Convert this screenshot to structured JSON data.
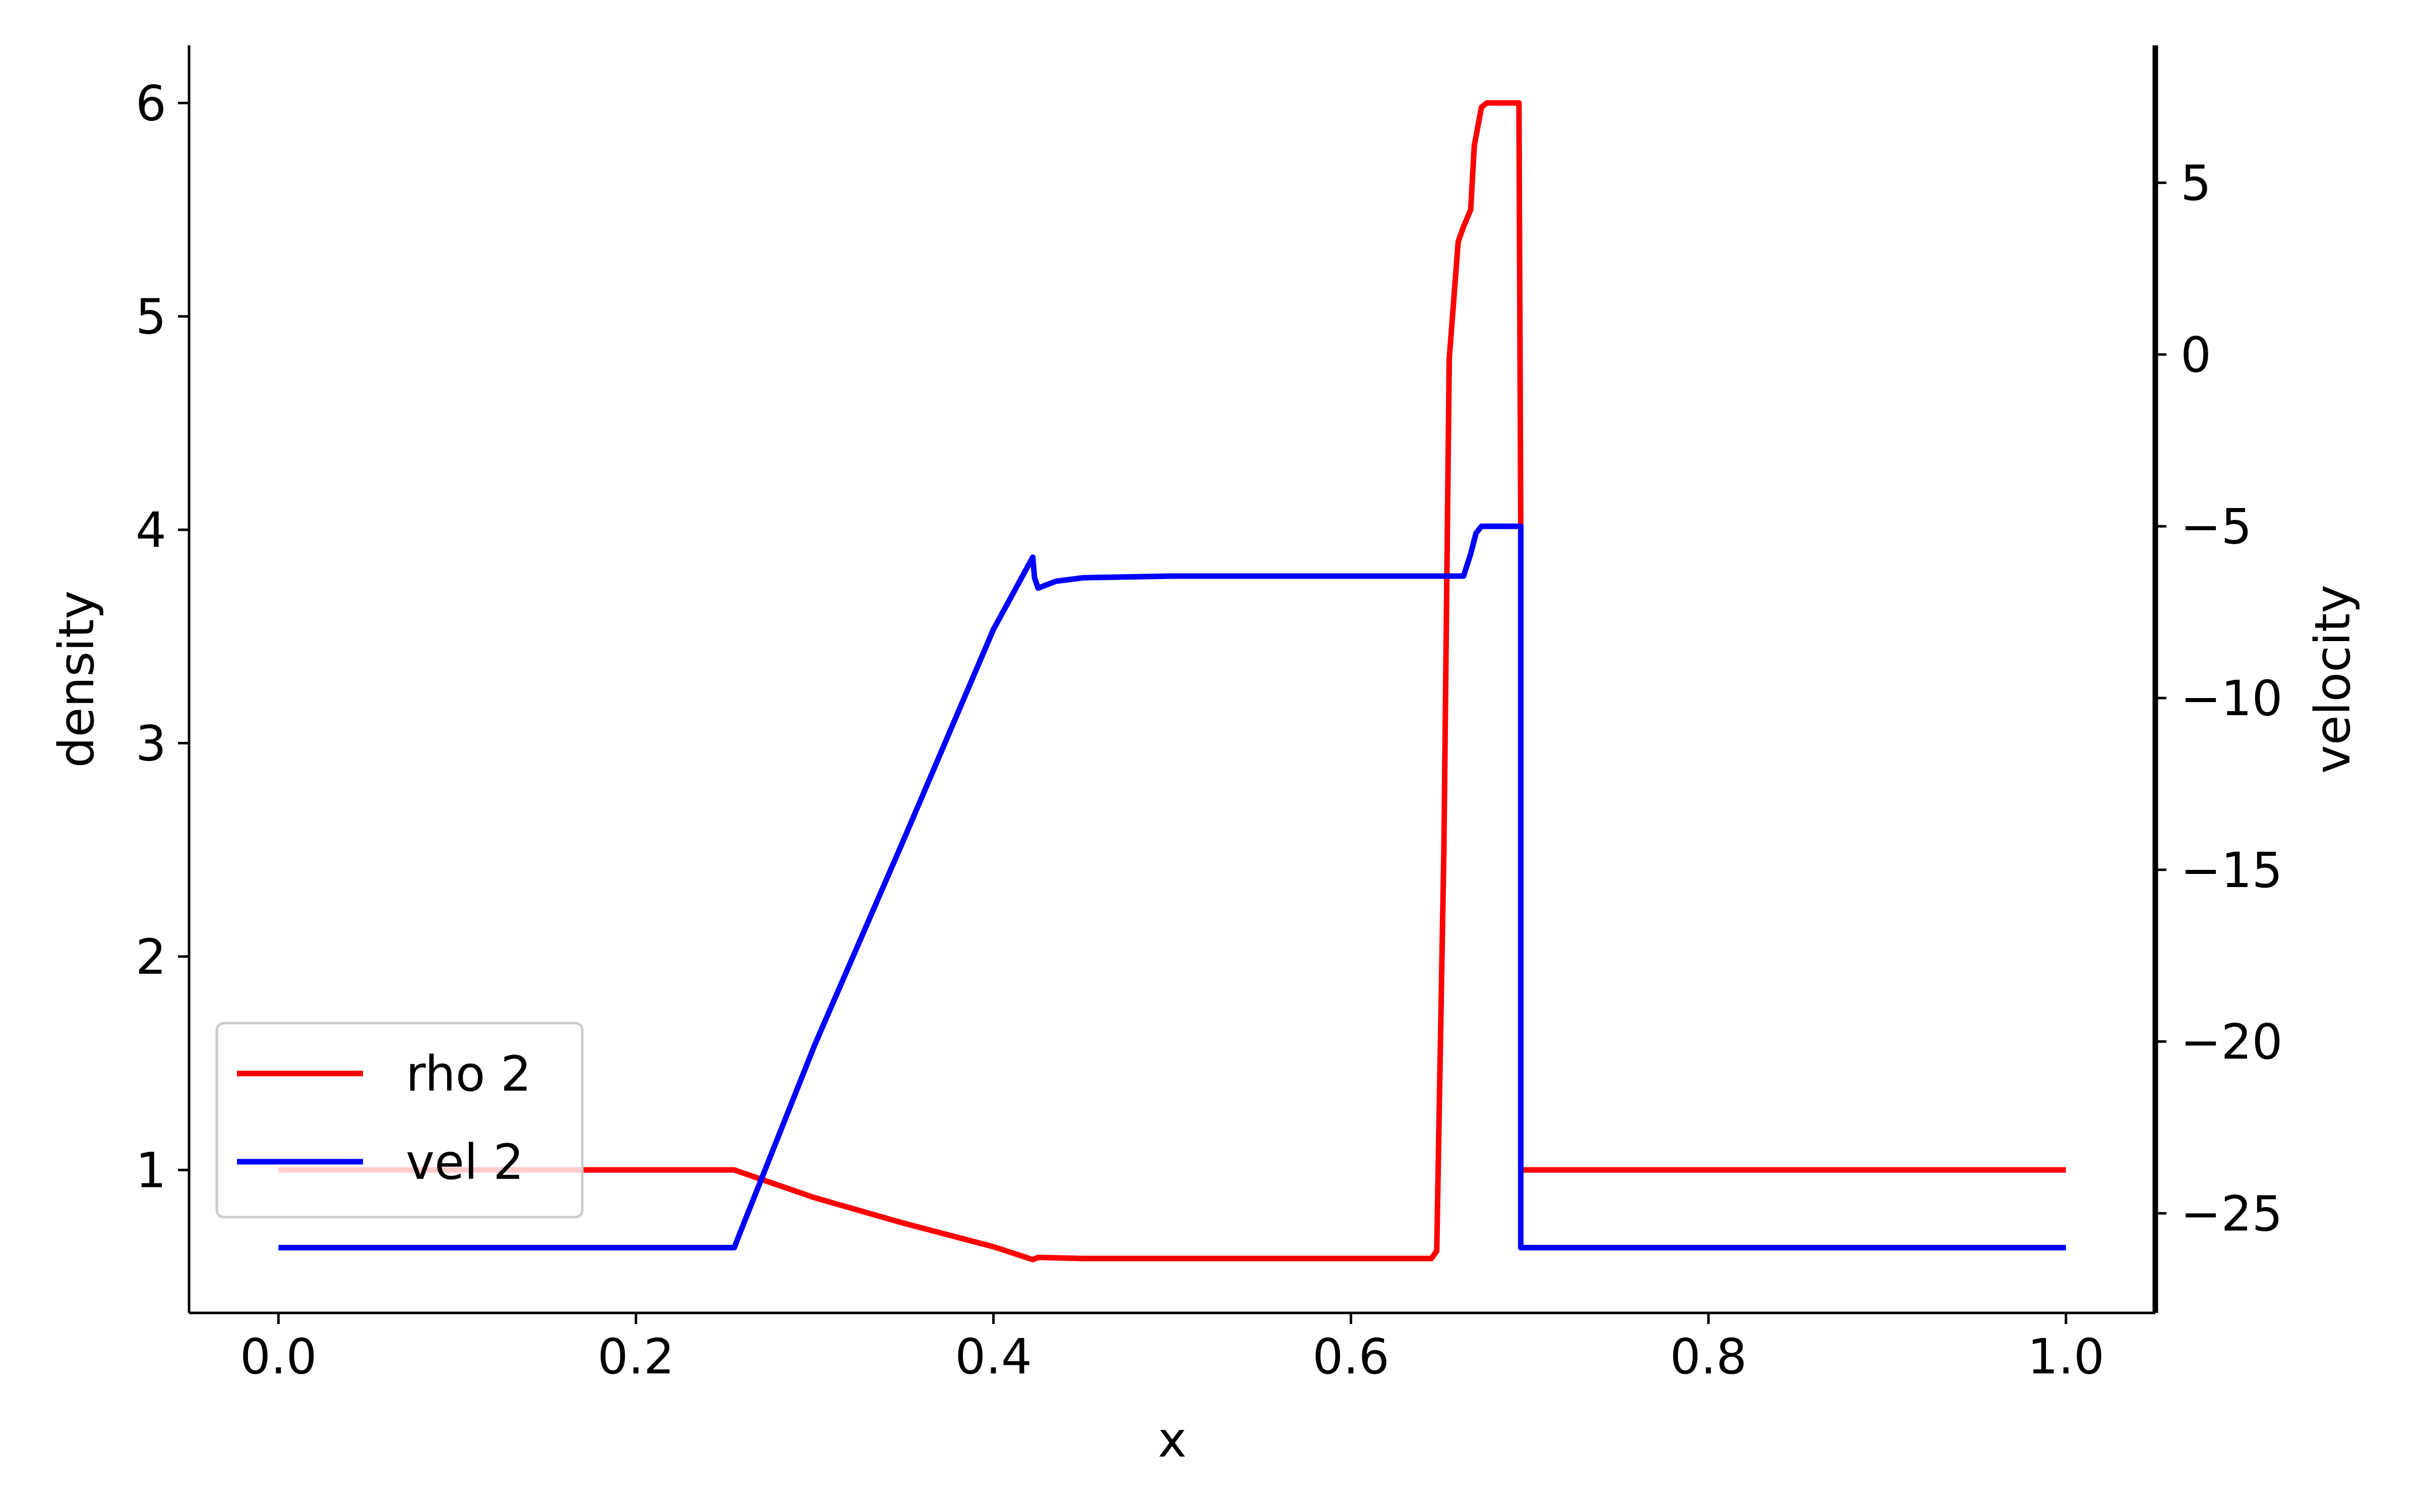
{
  "chart_data": {
    "type": "line",
    "xlabel": "x",
    "ylabel_left": "density",
    "ylabel_right": "velocity",
    "xlim": [
      -0.05,
      1.05
    ],
    "ylim_left": [
      0.33,
      6.27
    ],
    "ylim_right": [
      -27.9,
      9.0
    ],
    "x_ticks": [
      0.0,
      0.2,
      0.4,
      0.6,
      0.8,
      1.0
    ],
    "x_tick_labels": [
      "0.0",
      "0.2",
      "0.4",
      "0.6",
      "0.8",
      "1.0"
    ],
    "left_ticks": [
      1,
      2,
      3,
      4,
      5,
      6
    ],
    "left_tick_labels": [
      "1",
      "2",
      "3",
      "4",
      "5",
      "6"
    ],
    "right_ticks": [
      5,
      0,
      -5,
      -10,
      -15,
      -20,
      -25
    ],
    "right_tick_labels": [
      "5",
      "0",
      "−5",
      "−10",
      "−15",
      "−20",
      "−25"
    ],
    "legend_position": "lower-left",
    "grid": false,
    "series": [
      {
        "name": "rho 2",
        "axis": "left",
        "color": "#ff0000",
        "x": [
          0.0,
          0.255,
          0.3,
          0.35,
          0.4,
          0.422,
          0.425,
          0.45,
          0.5,
          0.6,
          0.645,
          0.648,
          0.652,
          0.655,
          0.66,
          0.663,
          0.667,
          0.669,
          0.673,
          0.676,
          0.694,
          0.695,
          0.695,
          1.0
        ],
        "y": [
          1.0,
          1.0,
          0.87,
          0.75,
          0.64,
          0.58,
          0.59,
          0.585,
          0.585,
          0.585,
          0.585,
          0.62,
          2.5,
          4.8,
          5.35,
          5.42,
          5.5,
          5.8,
          5.98,
          6.0,
          6.0,
          4.0,
          1.0,
          1.0
        ]
      },
      {
        "name": "vel 2",
        "axis": "right",
        "color": "#0000ff",
        "x": [
          0.0,
          0.255,
          0.258,
          0.3,
          0.35,
          0.4,
          0.422,
          0.423,
          0.425,
          0.435,
          0.45,
          0.5,
          0.6,
          0.66,
          0.663,
          0.667,
          0.67,
          0.673,
          0.676,
          0.694,
          0.695,
          0.695,
          1.0
        ],
        "y": [
          -26.0,
          -26.0,
          -25.6,
          -20.1,
          -14.1,
          -8.0,
          -5.9,
          -6.5,
          -6.8,
          -6.6,
          -6.5,
          -6.45,
          -6.45,
          -6.45,
          -6.45,
          -5.8,
          -5.2,
          -5.0,
          -5.0,
          -5.0,
          -5.0,
          -26.0,
          -26.0
        ]
      }
    ]
  }
}
